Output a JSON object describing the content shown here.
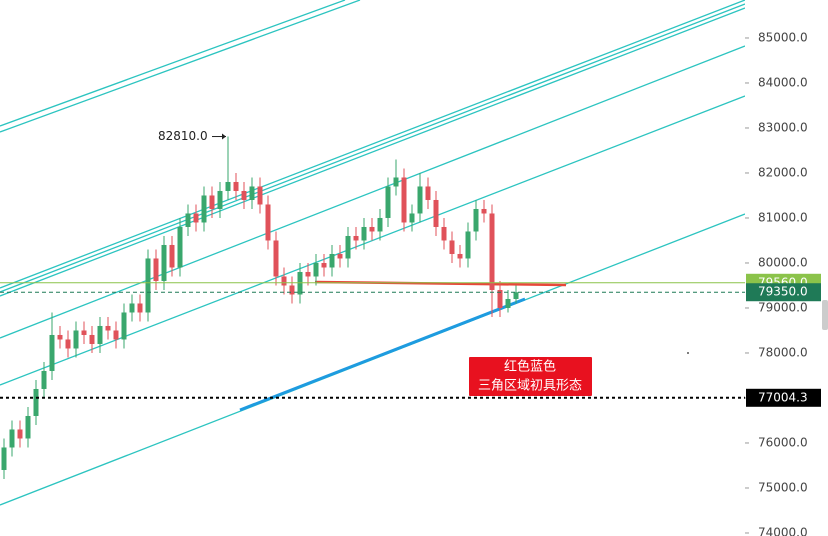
{
  "chart_data": {
    "type": "candlestick",
    "up_color": "#3aa76d",
    "down_color": "#e0525a",
    "ylim": [
      73933,
      85844
    ],
    "yticks": [
      {
        "value": 74000,
        "label": "74000.0"
      },
      {
        "value": 75000,
        "label": "75000.0"
      },
      {
        "value": 76000,
        "label": "76000.0"
      },
      {
        "value": 77000,
        "label": "77000.0"
      },
      {
        "value": 78000,
        "label": "78000.0"
      },
      {
        "value": 79000,
        "label": "79000.0"
      },
      {
        "value": 80000,
        "label": "80000.0"
      },
      {
        "value": 81000,
        "label": "81000.0"
      },
      {
        "value": 82000,
        "label": "82000.0"
      },
      {
        "value": 83000,
        "label": "83000.0"
      },
      {
        "value": 84000,
        "label": "84000.0"
      },
      {
        "value": 85000,
        "label": "85000.0"
      }
    ],
    "open": [
      75400,
      75900,
      76300,
      76100,
      76600,
      77200,
      77600,
      78400,
      78300,
      78100,
      78500,
      78400,
      78200,
      78600,
      78500,
      78300,
      78900,
      79100,
      78900,
      80100,
      79600,
      80400,
      79900,
      80800,
      81100,
      80900,
      81500,
      81200,
      81600,
      81800,
      81600,
      81400,
      81700,
      81300,
      80500,
      79700,
      79500,
      79300,
      79800,
      79700,
      80000,
      79900,
      80200,
      80100,
      80600,
      80500,
      80800,
      80700,
      81000,
      81700,
      81900,
      80900,
      81100,
      81700,
      81400,
      80800,
      80500,
      80200,
      80100,
      80700,
      81200,
      81100,
      79400,
      79000,
      79200
    ],
    "high": [
      76100,
      76500,
      76500,
      76800,
      77400,
      77800,
      78900,
      78600,
      78500,
      78700,
      78700,
      78600,
      78800,
      78800,
      78700,
      79100,
      79300,
      79300,
      80300,
      80300,
      80600,
      80600,
      81000,
      81300,
      81300,
      81700,
      81700,
      81800,
      82810,
      82000,
      81800,
      81900,
      81900,
      81500,
      80700,
      79900,
      79700,
      80000,
      80000,
      80200,
      80200,
      80400,
      80400,
      80800,
      80800,
      81000,
      81000,
      81200,
      81900,
      82300,
      82100,
      81300,
      82000,
      81900,
      81600,
      81000,
      80700,
      80400,
      80900,
      81400,
      81400,
      81300,
      79600,
      79400,
      79500
    ],
    "low": [
      75200,
      75700,
      75900,
      75900,
      76400,
      77000,
      77400,
      78100,
      77900,
      77900,
      78200,
      78000,
      78000,
      78300,
      78100,
      78100,
      78700,
      78700,
      78700,
      79400,
      79400,
      79700,
      79700,
      80600,
      80700,
      80700,
      81000,
      81000,
      81400,
      81400,
      81200,
      81200,
      81100,
      80300,
      79500,
      79300,
      79100,
      79100,
      79500,
      79500,
      79700,
      79700,
      79900,
      79900,
      80300,
      80300,
      80500,
      80500,
      80800,
      81500,
      80700,
      80700,
      80900,
      81200,
      80600,
      80300,
      80000,
      79900,
      79900,
      80500,
      80900,
      78800,
      78800,
      78900,
      79100
    ],
    "close": [
      75900,
      76300,
      76100,
      76600,
      77200,
      77600,
      78400,
      78300,
      78100,
      78500,
      78400,
      78200,
      78600,
      78500,
      78300,
      78900,
      79100,
      78900,
      80100,
      79600,
      80400,
      79900,
      80800,
      81100,
      80900,
      81500,
      81200,
      81600,
      81800,
      81600,
      81400,
      81700,
      81300,
      80500,
      79700,
      79500,
      79300,
      79800,
      79700,
      80000,
      79900,
      80200,
      80100,
      80600,
      80500,
      80800,
      80700,
      81000,
      81700,
      81900,
      80900,
      81100,
      81700,
      81400,
      80800,
      80500,
      80200,
      80100,
      80700,
      81200,
      81100,
      79400,
      79000,
      79200,
      79350
    ],
    "price_lines": [
      {
        "value": 79560,
        "label": "79560.0",
        "color": "#8bc34a"
      },
      {
        "value": 79350,
        "label": "79350.0",
        "color": "#1f7a57"
      },
      {
        "value": 77004.3,
        "label": "77004.3",
        "color": "#000000"
      }
    ],
    "high_marker": {
      "value": 82810,
      "label": "82810.0"
    },
    "annotation": [
      "红色蓝色",
      "三角区域初具形态"
    ]
  }
}
